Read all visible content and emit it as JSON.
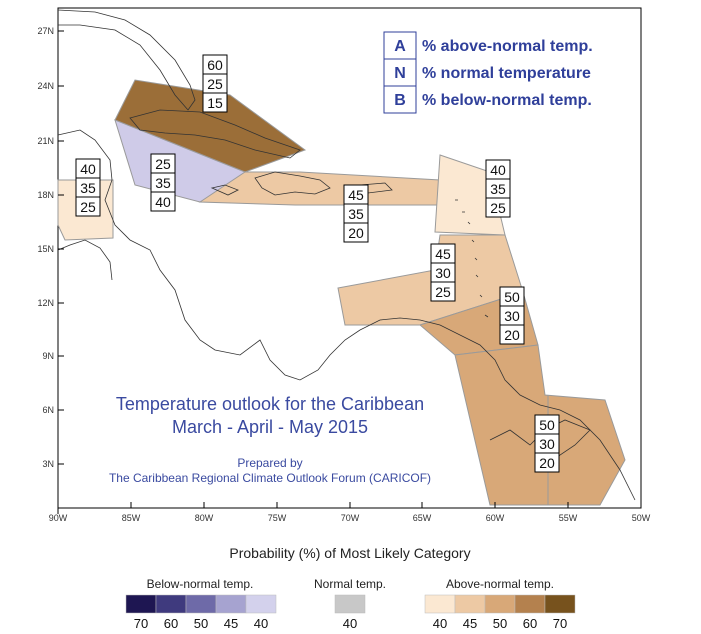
{
  "title_line1": "Temperature outlook for the Caribbean",
  "title_line2": "March - April - May 2015",
  "credit_line1": "Prepared by",
  "credit_line2": "The Caribbean Regional Climate Outlook Forum (CARICOF)",
  "key": [
    {
      "letter": "A",
      "text": "% above-normal temp."
    },
    {
      "letter": "N",
      "text": "% normal temperature"
    },
    {
      "letter": "B",
      "text": "% below-normal temp."
    }
  ],
  "lat_ticks": [
    "27N",
    "24N",
    "21N",
    "18N",
    "15N",
    "12N",
    "9N",
    "6N",
    "3N"
  ],
  "lon_ticks": [
    "90W",
    "85W",
    "80W",
    "75W",
    "70W",
    "65W",
    "60W",
    "55W",
    "50W"
  ],
  "legend": {
    "title": "Probability (%) of Most Likely Category",
    "below_label": "Below-normal temp.",
    "normal_label": "Normal temp.",
    "above_label": "Above-normal temp.",
    "below_values": [
      "70",
      "60",
      "50",
      "45",
      "40"
    ],
    "normal_values": [
      "40"
    ],
    "above_values": [
      "40",
      "45",
      "50",
      "60",
      "70"
    ],
    "below_colors": [
      "#1e1652",
      "#3f3a7e",
      "#6e6aa8",
      "#a6a3d0",
      "#d3d1ec"
    ],
    "normal_colors": [
      "#c8c8c8"
    ],
    "above_colors": [
      "#fbe8d2",
      "#edc9a4",
      "#d8a878",
      "#b4814e",
      "#77521d"
    ]
  },
  "regions": [
    {
      "name": "bahamas-cuba",
      "above": "60",
      "normal": "25",
      "below": "15",
      "category": "above",
      "level": "60"
    },
    {
      "name": "cayman-jamaica",
      "above": "25",
      "normal": "35",
      "below": "40",
      "category": "below",
      "level": "40"
    },
    {
      "name": "belize",
      "above": "40",
      "normal": "35",
      "below": "25",
      "category": "above",
      "level": "40"
    },
    {
      "name": "greater-antilles-east",
      "above": "45",
      "normal": "35",
      "below": "20",
      "category": "above",
      "level": "45"
    },
    {
      "name": "northern-lesser-antilles",
      "above": "40",
      "normal": "35",
      "below": "25",
      "category": "above",
      "level": "40"
    },
    {
      "name": "central-lesser-antilles",
      "above": "45",
      "normal": "30",
      "below": "25",
      "category": "above",
      "level": "45"
    },
    {
      "name": "southern-windwards",
      "above": "50",
      "normal": "30",
      "below": "20",
      "category": "above",
      "level": "50"
    },
    {
      "name": "guianas",
      "above": "50",
      "normal": "30",
      "below": "20",
      "category": "above",
      "level": "50"
    }
  ]
}
